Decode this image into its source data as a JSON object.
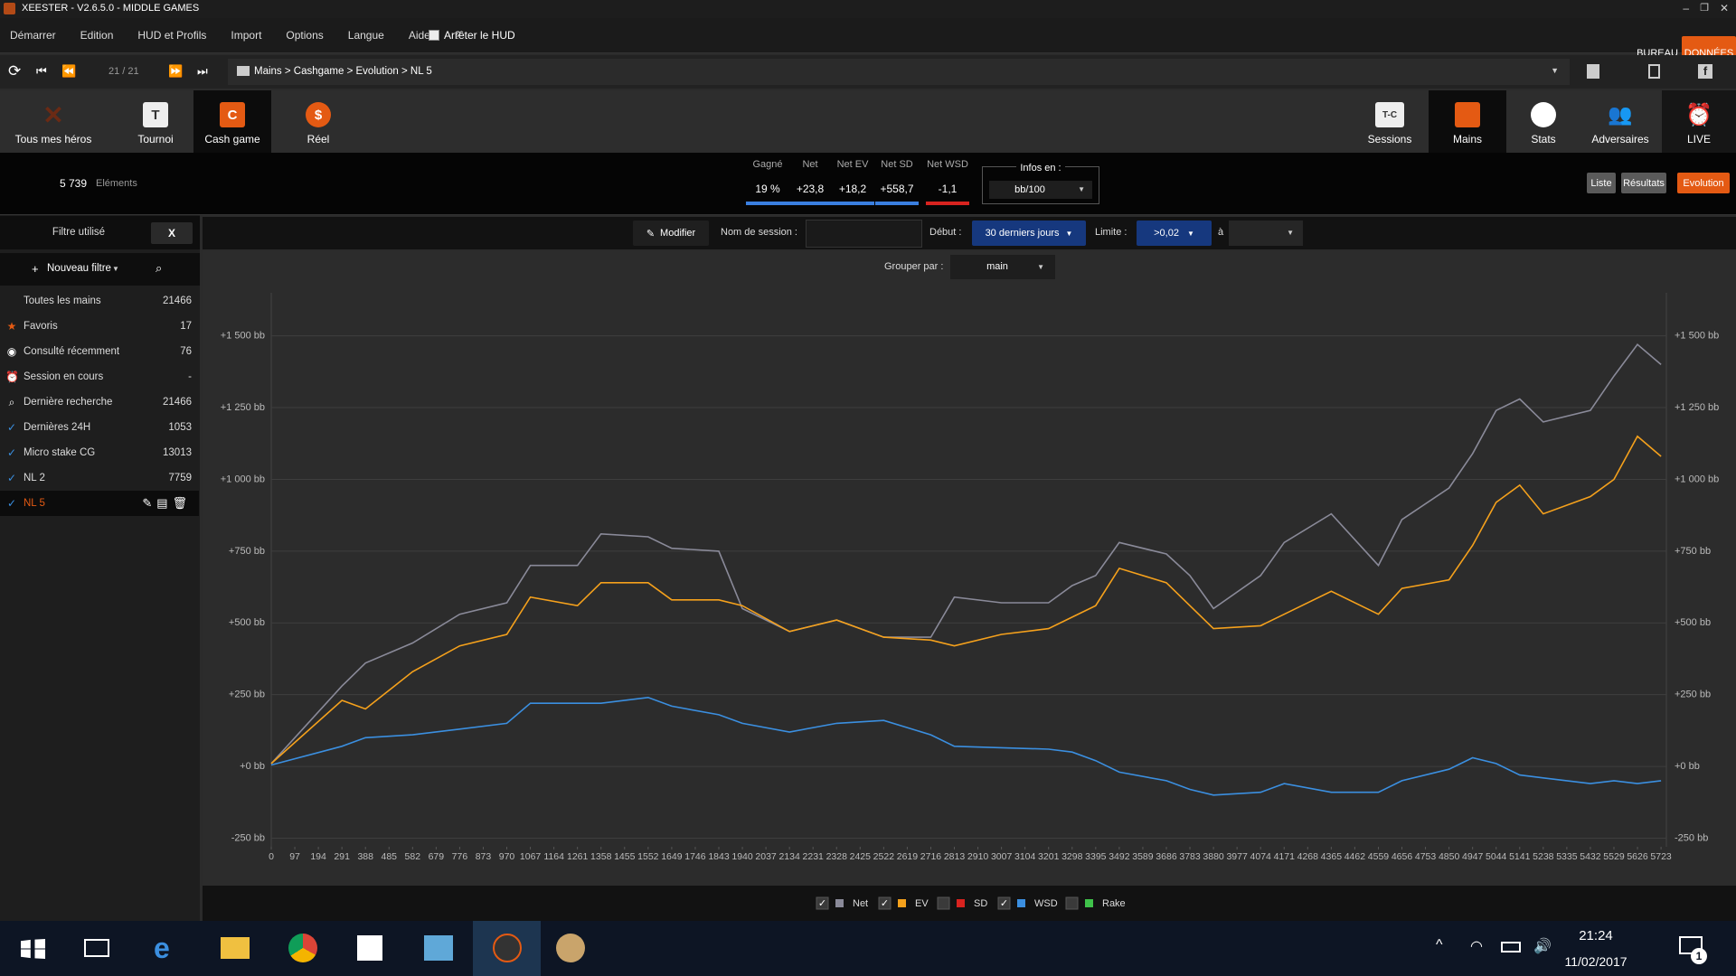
{
  "window": {
    "title": "XEESTER - V2.6.5.0 - MIDDLE GAMES"
  },
  "menu": {
    "items": [
      "Démarrer",
      "Edition",
      "HUD et Profils",
      "Import",
      "Options",
      "Langue",
      "Aide",
      "?"
    ],
    "hud_toggle": "Arrêter le HUD",
    "right": [
      "BUREAU",
      "DONNÉES"
    ]
  },
  "nav": {
    "counter": "21 / 21",
    "breadcrumb": "Mains > Cashgame > Evolution > NL 5"
  },
  "toolbar": {
    "left": [
      "Tous mes héros",
      "Tournoi",
      "Cash game",
      "Réel"
    ],
    "tournoi_icon": "T",
    "cash_icon": "C",
    "right": [
      "Sessions",
      "Mains",
      "Stats",
      "Adversaires",
      "LIVE"
    ],
    "sessions_icon": "T-C"
  },
  "summary": {
    "count": "5 739",
    "count_label": "Eléments",
    "stats": [
      {
        "label": "Gagné",
        "value": "19 %"
      },
      {
        "label": "Net",
        "value": "+23,8"
      },
      {
        "label": "Net EV",
        "value": "+18,2"
      },
      {
        "label": "Net SD",
        "value": "+558,7"
      },
      {
        "label": "Net WSD",
        "value": "-1,1"
      }
    ],
    "infos_label": "Infos en :",
    "infos_value": "bb/100",
    "views": [
      "Liste",
      "Résultats",
      "Evolution"
    ]
  },
  "sidebar": {
    "filter_label": "Filtre utilisé",
    "filter_clear": "X",
    "new_filter": "Nouveau filtre",
    "items": [
      {
        "label": "Toutes les mains",
        "count": "21466"
      },
      {
        "label": "Favoris",
        "count": "17"
      },
      {
        "label": "Consulté récemment",
        "count": "76"
      },
      {
        "label": "Session en cours",
        "count": "-"
      },
      {
        "label": "Dernière recherche",
        "count": "21466"
      },
      {
        "label": "Dernières 24H",
        "count": "1053"
      },
      {
        "label": "Micro stake CG",
        "count": "13013"
      },
      {
        "label": "NL 2",
        "count": "7759"
      },
      {
        "label": "NL 5"
      }
    ]
  },
  "filters": {
    "modify": "Modifier",
    "session_label": "Nom de session :",
    "start_label": "Début :",
    "start_value": "30 derniers jours",
    "limit_label": "Limite :",
    "limit_value": ">0,02",
    "to_label": "à",
    "group_label": "Grouper par :",
    "group_value": "main"
  },
  "taskbar": {
    "time": "21:24",
    "date": "11/02/2017",
    "notifications": "1"
  },
  "chart_data": {
    "type": "line",
    "x": [
      0,
      291,
      388,
      582,
      776,
      970,
      1067,
      1261,
      1358,
      1552,
      1649,
      1843,
      1940,
      2134,
      2328,
      2522,
      2716,
      2813,
      3007,
      3201,
      3298,
      3395,
      3492,
      3686,
      3783,
      3880,
      4074,
      4171,
      4365,
      4559,
      4656,
      4850,
      4947,
      5044,
      5141,
      5238,
      5432,
      5529,
      5626,
      5723
    ],
    "series": [
      {
        "name": "Net",
        "color": "#8a8a99",
        "checked": true,
        "values": [
          10,
          280,
          360,
          430,
          530,
          570,
          700,
          700,
          810,
          800,
          760,
          750,
          550,
          470,
          510,
          450,
          450,
          590,
          570,
          570,
          630,
          665,
          780,
          740,
          665,
          550,
          665,
          780,
          880,
          700,
          860,
          970,
          1090,
          1240,
          1280,
          1200,
          1240,
          1360,
          1470,
          1400
        ]
      },
      {
        "name": "EV",
        "color": "#f5a11c",
        "checked": true,
        "values": [
          10,
          230,
          200,
          330,
          420,
          460,
          590,
          560,
          640,
          640,
          580,
          580,
          560,
          470,
          510,
          450,
          440,
          420,
          460,
          480,
          520,
          560,
          690,
          640,
          560,
          480,
          490,
          530,
          610,
          530,
          620,
          650,
          770,
          920,
          980,
          880,
          940,
          1000,
          1150,
          1080
        ]
      },
      {
        "name": "SD",
        "color": "#d8231f",
        "checked": false,
        "values": [
          null,
          null,
          null,
          null,
          null,
          null,
          null,
          null,
          null,
          null,
          null,
          null,
          null,
          null,
          null,
          null,
          null,
          null,
          null,
          null,
          null,
          null,
          null,
          null,
          null,
          null,
          null,
          null,
          null,
          null,
          null,
          null,
          null,
          null,
          null,
          null,
          null,
          null,
          null,
          null
        ]
      },
      {
        "name": "WSD",
        "color": "#3b8fe0",
        "checked": true,
        "values": [
          5,
          70,
          100,
          110,
          130,
          150,
          220,
          220,
          220,
          240,
          210,
          180,
          150,
          120,
          150,
          160,
          110,
          70,
          65,
          60,
          50,
          20,
          -20,
          -50,
          -80,
          -100,
          -90,
          -60,
          -90,
          -90,
          -50,
          -10,
          30,
          10,
          -30,
          -40,
          -60,
          -50,
          -60,
          -50
        ]
      },
      {
        "name": "Rake",
        "color": "#3fc24a",
        "checked": false,
        "values": [
          null,
          null,
          null,
          null,
          null,
          null,
          null,
          null,
          null,
          null,
          null,
          null,
          null,
          null,
          null,
          null,
          null,
          null,
          null,
          null,
          null,
          null,
          null,
          null,
          null,
          null,
          null,
          null,
          null,
          null,
          null,
          null,
          null,
          null,
          null,
          null,
          null,
          null,
          null,
          null
        ]
      }
    ],
    "xlim": [
      0,
      5745
    ],
    "xticks": [
      0,
      97,
      194,
      291,
      388,
      485,
      582,
      679,
      776,
      873,
      970,
      1067,
      1164,
      1261,
      1358,
      1455,
      1552,
      1649,
      1746,
      1843,
      1940,
      2037,
      2134,
      2231,
      2328,
      2425,
      2522,
      2619,
      2716,
      2813,
      2910,
      3007,
      3104,
      3201,
      3298,
      3395,
      3492,
      3589,
      3686,
      3783,
      3880,
      3977,
      4074,
      4171,
      4268,
      4365,
      4462,
      4559,
      4656,
      4753,
      4850,
      4947,
      5044,
      5141,
      5238,
      5335,
      5432,
      5529,
      5626,
      5723
    ],
    "ylim": [
      -280,
      1650
    ],
    "yticks": [
      {
        "value": -250,
        "label": "-250 bb"
      },
      {
        "value": 0,
        "label": "+0 bb"
      },
      {
        "value": 250,
        "label": "+250 bb"
      },
      {
        "value": 500,
        "label": "+500 bb"
      },
      {
        "value": 750,
        "label": "+750 bb"
      },
      {
        "value": 1000,
        "label": "+1 000 bb"
      },
      {
        "value": 1250,
        "label": "+1 250 bb"
      },
      {
        "value": 1500,
        "label": "+1 500 bb"
      }
    ],
    "grid": true
  }
}
